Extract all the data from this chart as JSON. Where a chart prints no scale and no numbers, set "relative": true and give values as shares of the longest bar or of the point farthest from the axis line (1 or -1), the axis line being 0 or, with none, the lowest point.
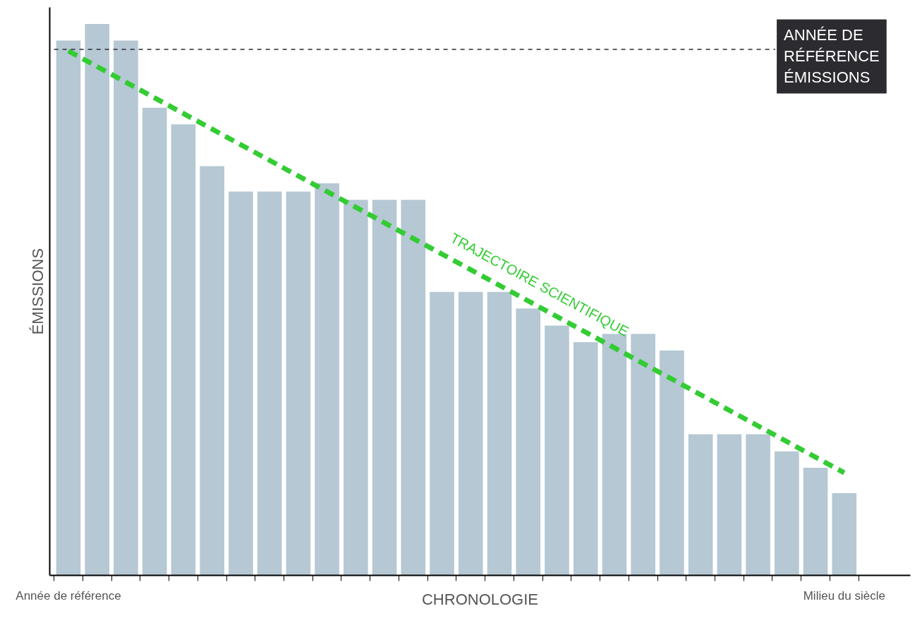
{
  "chart_data": {
    "type": "bar",
    "relative": true,
    "xlabel": "CHRONOLOGIE",
    "ylabel": "ÉMISSIONS",
    "categories": [
      "Année de référence",
      null,
      null,
      null,
      null,
      null,
      null,
      null,
      null,
      null,
      null,
      null,
      null,
      null,
      null,
      null,
      null,
      null,
      null,
      null,
      null,
      null,
      null,
      null,
      null,
      null,
      null,
      "Milieu du siècle"
    ],
    "series": [
      {
        "color": "#b5c8d4",
        "values": [
          0.97,
          1,
          0.97,
          0.848,
          0.818,
          0.742,
          0.696,
          0.696,
          0.696,
          0.711,
          0.681,
          0.681,
          0.681,
          0.514,
          0.514,
          0.514,
          0.484,
          0.453,
          0.423,
          0.438,
          0.438,
          0.408,
          0.256,
          0.256,
          0.256,
          0.225,
          0.195,
          0.149
        ]
      },
      {
        "type": "line",
        "color": "#33cc33",
        "line_style": "dashed",
        "values": [
          0.951,
          null,
          null,
          null,
          null,
          null,
          null,
          null,
          null,
          null,
          null,
          null,
          null,
          null,
          null,
          null,
          null,
          null,
          null,
          null,
          null,
          null,
          null,
          null,
          null,
          null,
          null,
          0.186
        ]
      }
    ],
    "ref_lines": [
      {
        "axis": "y",
        "value": 0.954,
        "label": "ANNÉE DE RÉFÉRENCE ÉMISSIONS",
        "color": "#2b2b30",
        "line_style": "dashed"
      }
    ],
    "annotations": [
      "TRAJECTOIRE SCIENTIFIQUE"
    ],
    "grid": false,
    "tick_labels": "x"
  }
}
